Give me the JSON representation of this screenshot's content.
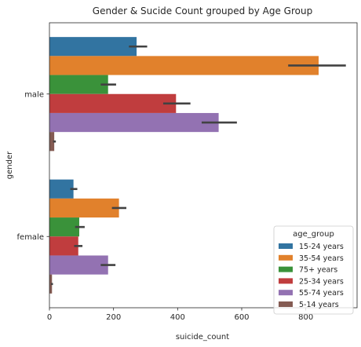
{
  "chart_data": {
    "type": "bar",
    "orientation": "horizontal",
    "title": "Gender & Sucide Count grouped by Age Group",
    "xlabel": "suicide_count",
    "ylabel": "gender",
    "xlim": [
      0,
      960
    ],
    "xticks": [
      0,
      200,
      400,
      600,
      800
    ],
    "categories": [
      "male",
      "female"
    ],
    "legend_title": "age_group",
    "legend_position": "lower-right",
    "grid": false,
    "series": [
      {
        "name": "15-24 years",
        "color": "#3274a1",
        "values": [
          272,
          75
        ],
        "ci": [
          [
            248,
            305
          ],
          [
            65,
            87
          ]
        ]
      },
      {
        "name": "35-54 years",
        "color": "#e1812c",
        "values": [
          840,
          217
        ],
        "ci": [
          [
            745,
            925
          ],
          [
            195,
            240
          ]
        ]
      },
      {
        "name": "75+ years",
        "color": "#3a923a",
        "values": [
          183,
          93
        ],
        "ci": [
          [
            160,
            208
          ],
          [
            80,
            110
          ]
        ]
      },
      {
        "name": "25-34 years",
        "color": "#c03d3e",
        "values": [
          395,
          90
        ],
        "ci": [
          [
            355,
            440
          ],
          [
            77,
            103
          ]
        ]
      },
      {
        "name": "55-74 years",
        "color": "#9372b2",
        "values": [
          528,
          183
        ],
        "ci": [
          [
            475,
            585
          ],
          [
            160,
            206
          ]
        ]
      },
      {
        "name": "5-14 years",
        "color": "#845b53",
        "values": [
          15,
          8
        ],
        "ci": [
          [
            11,
            20
          ],
          [
            5,
            11
          ]
        ]
      }
    ]
  }
}
